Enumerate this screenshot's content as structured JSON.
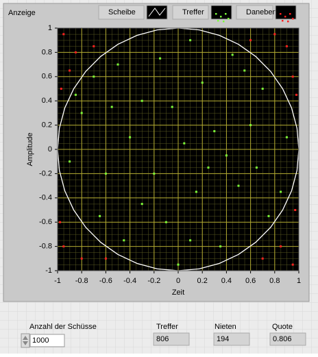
{
  "chart_data": {
    "type": "scatter",
    "title": "Anzeige",
    "x_label": "Zeit",
    "y_label": "Amplitude",
    "xlim": [
      -1,
      1
    ],
    "ylim": [
      -1,
      1
    ],
    "xticks": [
      -1,
      -0.8,
      -0.6,
      -0.4,
      -0.2,
      0,
      0.2,
      0.4,
      0.6,
      0.8,
      1
    ],
    "yticks": [
      -1,
      -0.8,
      -0.6,
      -0.4,
      -0.2,
      0,
      0.2,
      0.4,
      0.6,
      0.8,
      1
    ],
    "grid": true,
    "series": [
      {
        "name": "Scheibe",
        "type": "line",
        "color": "#ffffff",
        "x": [
          1,
          0.985,
          0.94,
          0.866,
          0.766,
          0.643,
          0.5,
          0.342,
          0.174,
          0,
          -0.174,
          -0.342,
          -0.5,
          -0.643,
          -0.766,
          -0.866,
          -0.94,
          -0.985,
          -1,
          -0.985,
          -0.94,
          -0.866,
          -0.766,
          -0.643,
          -0.5,
          -0.342,
          -0.174,
          0,
          0.174,
          0.342,
          0.5,
          0.643,
          0.766,
          0.866,
          0.94,
          0.985,
          1
        ],
        "values": [
          0,
          0.174,
          0.342,
          0.5,
          0.643,
          0.766,
          0.866,
          0.94,
          0.985,
          1,
          0.985,
          0.94,
          0.866,
          0.766,
          0.643,
          0.5,
          0.342,
          0.174,
          0,
          -0.174,
          -0.342,
          -0.5,
          -0.643,
          -0.766,
          -0.866,
          -0.94,
          -0.985,
          -1,
          -0.985,
          -0.94,
          -0.866,
          -0.766,
          -0.643,
          -0.5,
          -0.342,
          -0.174,
          0
        ]
      },
      {
        "name": "Treffer",
        "type": "scatter",
        "color": "#7cfc3a",
        "x": [
          0.1,
          -0.5,
          0.45,
          -0.8,
          0.7,
          -0.3,
          0.2,
          -0.6,
          0.9,
          0.5,
          -0.1,
          0.35,
          -0.45,
          0.75,
          -0.9,
          0.05,
          -0.2,
          0.6,
          -0.7,
          0.3,
          -0.4,
          0.15,
          -0.65,
          0.85,
          -0.15,
          0.55,
          0,
          -0.85,
          0.4,
          -0.05,
          0.25,
          -0.3,
          0.65,
          -0.55,
          0.1
        ],
        "values": [
          0.9,
          0.7,
          0.78,
          0.3,
          0.5,
          0.4,
          0.55,
          -0.2,
          0.1,
          -0.3,
          -0.6,
          -0.8,
          -0.75,
          -0.55,
          -0.1,
          0.05,
          -0.2,
          0.2,
          0.6,
          0.15,
          0.1,
          -0.35,
          -0.55,
          -0.35,
          0.75,
          0.65,
          -0.95,
          0.45,
          -0.05,
          0.35,
          -0.15,
          -0.45,
          -0.15,
          0.35,
          -0.75
        ]
      },
      {
        "name": "Daneben",
        "type": "scatter",
        "color": "#ff2020",
        "x": [
          -0.95,
          -0.85,
          0.9,
          0.8,
          0.95,
          -0.95,
          -0.8,
          0.85,
          0.95,
          0.7,
          -0.9,
          0.97,
          -0.98,
          0.6,
          -0.7,
          -0.6,
          0.98,
          -0.97
        ],
        "values": [
          0.95,
          0.8,
          0.85,
          0.95,
          0.6,
          -0.8,
          -0.9,
          -0.8,
          -0.95,
          -0.9,
          0.65,
          -0.5,
          -0.6,
          0.9,
          0.85,
          -0.9,
          0.45,
          0.5
        ]
      }
    ]
  },
  "panel": {
    "count": {
      "label": "Anzahl der Schüsse",
      "value": 1000
    },
    "hits": {
      "label": "Treffer",
      "value": 806
    },
    "misses": {
      "label": "Nieten",
      "value": 194
    },
    "ratio": {
      "label": "Quote",
      "value": 0.806
    }
  }
}
